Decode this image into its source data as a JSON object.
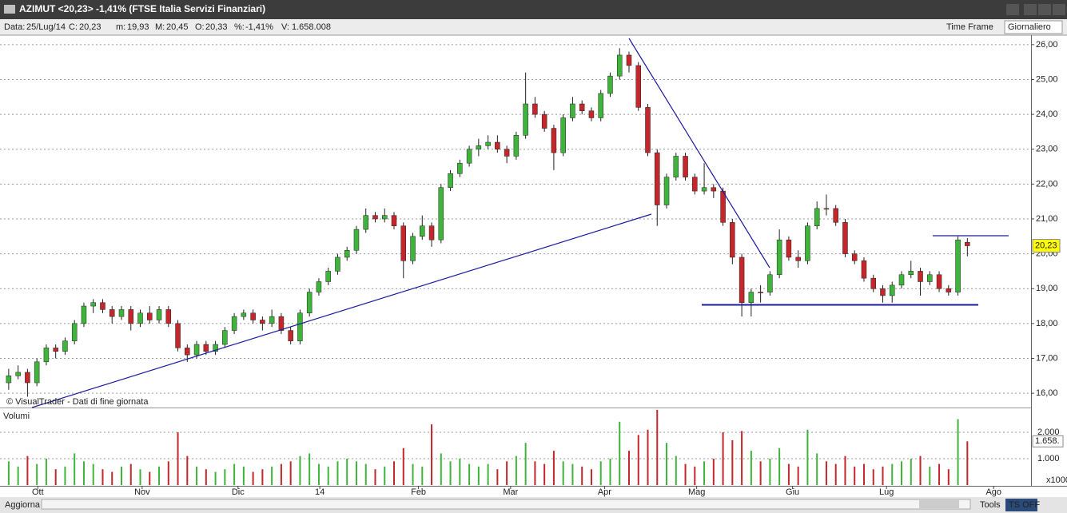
{
  "window": {
    "title": "AZIMUT <20,23> -1,41%  (FTSE Italia Servizi Finanziari)"
  },
  "info": {
    "date_label": "Data:",
    "date": "25/Lug/14",
    "close_label": "C:",
    "close": "20,23",
    "low_label": "m:",
    "low": "19,93",
    "high_label": "M:",
    "high": "20,45",
    "open_label": "O:",
    "open": "20,33",
    "change_label": "%:",
    "change": "-1,41%",
    "volume_label": "V:",
    "volume": "1.658.008",
    "timeframe_label": "Time Frame",
    "timeframe": "Giornaliero"
  },
  "chart_data": {
    "type": "candlestick",
    "watermark": "© VisualTrader - Dati di fine giornata",
    "up_color": "#3fb43a",
    "down_color": "#c4262b",
    "grid": true,
    "xlim": [
      0,
      108
    ],
    "xticks": [
      {
        "value": 3.6,
        "label": "Ott"
      },
      {
        "value": 14.7,
        "label": "Nov"
      },
      {
        "value": 24.9,
        "label": "Dic"
      },
      {
        "value": 33.6,
        "label": "14"
      },
      {
        "value": 44.1,
        "label": "Feb"
      },
      {
        "value": 53.9,
        "label": "Mar"
      },
      {
        "value": 63.9,
        "label": "Apr"
      },
      {
        "value": 73.7,
        "label": "Mag"
      },
      {
        "value": 83.9,
        "label": "Giu"
      },
      {
        "value": 93.9,
        "label": "Lug"
      },
      {
        "value": 105.3,
        "label": "Ago"
      }
    ],
    "ylim": [
      15.59,
      26.18
    ],
    "yticks": [
      {
        "value": 16,
        "label": "16,00"
      },
      {
        "value": 17,
        "label": "17,00"
      },
      {
        "value": 18,
        "label": "18,00"
      },
      {
        "value": 19,
        "label": "19,00"
      },
      {
        "value": 20,
        "label": "20,00"
      },
      {
        "value": 21,
        "label": "21,00"
      },
      {
        "value": 22,
        "label": "22,00"
      },
      {
        "value": 23,
        "label": "23,00"
      },
      {
        "value": 24,
        "label": "24,00"
      },
      {
        "value": 25,
        "label": "25,00"
      },
      {
        "value": 26,
        "label": "26,00"
      }
    ],
    "ohlc": [
      [
        16.3,
        16.7,
        16.1,
        16.5
      ],
      [
        16.5,
        16.8,
        16.4,
        16.6
      ],
      [
        16.6,
        16.7,
        15.9,
        16.3
      ],
      [
        16.3,
        17.0,
        16.2,
        16.9
      ],
      [
        16.9,
        17.4,
        16.8,
        17.3
      ],
      [
        17.3,
        17.4,
        17.0,
        17.2
      ],
      [
        17.2,
        17.6,
        17.1,
        17.5
      ],
      [
        17.5,
        18.1,
        17.4,
        18.0
      ],
      [
        18.0,
        18.6,
        17.9,
        18.5
      ],
      [
        18.5,
        18.7,
        18.3,
        18.6
      ],
      [
        18.6,
        18.7,
        18.3,
        18.4
      ],
      [
        18.4,
        18.5,
        18.0,
        18.2
      ],
      [
        18.2,
        18.5,
        18.1,
        18.4
      ],
      [
        18.4,
        18.5,
        17.8,
        18.0
      ],
      [
        18.0,
        18.4,
        17.9,
        18.3
      ],
      [
        18.3,
        18.5,
        18.0,
        18.1
      ],
      [
        18.1,
        18.5,
        18.0,
        18.4
      ],
      [
        18.4,
        18.5,
        17.9,
        18.0
      ],
      [
        18.0,
        18.1,
        17.2,
        17.3
      ],
      [
        17.3,
        17.4,
        16.9,
        17.1
      ],
      [
        17.1,
        17.5,
        17.0,
        17.4
      ],
      [
        17.4,
        17.5,
        17.1,
        17.2
      ],
      [
        17.2,
        17.5,
        17.1,
        17.4
      ],
      [
        17.4,
        17.9,
        17.3,
        17.8
      ],
      [
        17.8,
        18.3,
        17.7,
        18.2
      ],
      [
        18.2,
        18.4,
        18.1,
        18.3
      ],
      [
        18.3,
        18.4,
        18.0,
        18.1
      ],
      [
        18.1,
        18.2,
        17.8,
        18.0
      ],
      [
        18.0,
        18.4,
        17.9,
        18.2
      ],
      [
        18.2,
        18.3,
        17.7,
        17.8
      ],
      [
        17.8,
        17.9,
        17.4,
        17.5
      ],
      [
        17.5,
        18.4,
        17.4,
        18.3
      ],
      [
        18.3,
        19.0,
        18.2,
        18.9
      ],
      [
        18.9,
        19.3,
        18.8,
        19.2
      ],
      [
        19.2,
        19.6,
        19.1,
        19.5
      ],
      [
        19.5,
        20.0,
        19.4,
        19.9
      ],
      [
        19.9,
        20.2,
        19.8,
        20.1
      ],
      [
        20.1,
        20.8,
        20.0,
        20.7
      ],
      [
        20.7,
        21.3,
        20.6,
        21.1
      ],
      [
        21.1,
        21.2,
        20.9,
        21.0
      ],
      [
        21.0,
        21.3,
        20.9,
        21.1
      ],
      [
        21.1,
        21.2,
        20.7,
        20.8
      ],
      [
        20.8,
        20.9,
        19.3,
        19.8
      ],
      [
        19.8,
        20.6,
        19.7,
        20.5
      ],
      [
        20.5,
        21.1,
        20.4,
        20.8
      ],
      [
        20.8,
        20.9,
        20.2,
        20.4
      ],
      [
        20.4,
        22.0,
        20.3,
        21.9
      ],
      [
        21.9,
        22.4,
        21.8,
        22.3
      ],
      [
        22.3,
        22.7,
        22.2,
        22.6
      ],
      [
        22.6,
        23.1,
        22.5,
        23.0
      ],
      [
        23.0,
        23.3,
        22.8,
        23.1
      ],
      [
        23.1,
        23.4,
        23.0,
        23.2
      ],
      [
        23.2,
        23.4,
        22.9,
        23.0
      ],
      [
        23.0,
        23.1,
        22.6,
        22.8
      ],
      [
        22.8,
        23.5,
        22.7,
        23.4
      ],
      [
        23.4,
        25.2,
        23.3,
        24.3
      ],
      [
        24.3,
        24.5,
        23.9,
        24.0
      ],
      [
        24.0,
        24.1,
        23.5,
        23.6
      ],
      [
        23.6,
        23.7,
        22.4,
        22.9
      ],
      [
        22.9,
        24.0,
        22.8,
        23.9
      ],
      [
        23.9,
        24.5,
        23.8,
        24.3
      ],
      [
        24.3,
        24.4,
        24.0,
        24.1
      ],
      [
        24.1,
        24.2,
        23.8,
        23.9
      ],
      [
        23.9,
        24.7,
        23.8,
        24.6
      ],
      [
        24.6,
        25.2,
        24.5,
        25.1
      ],
      [
        25.1,
        25.9,
        25.0,
        25.7
      ],
      [
        25.7,
        25.8,
        25.2,
        25.4
      ],
      [
        25.4,
        25.5,
        24.1,
        24.2
      ],
      [
        24.2,
        24.3,
        22.8,
        22.9
      ],
      [
        22.9,
        23.0,
        20.8,
        21.4
      ],
      [
        21.4,
        22.3,
        21.3,
        22.2
      ],
      [
        22.2,
        22.9,
        22.1,
        22.8
      ],
      [
        22.8,
        22.9,
        22.1,
        22.2
      ],
      [
        22.2,
        22.3,
        21.7,
        21.8
      ],
      [
        21.8,
        22.6,
        21.7,
        21.9
      ],
      [
        21.9,
        22.0,
        21.6,
        21.8
      ],
      [
        21.8,
        21.9,
        20.8,
        20.9
      ],
      [
        20.9,
        21.0,
        19.7,
        19.9
      ],
      [
        19.9,
        20.0,
        18.2,
        18.6
      ],
      [
        18.6,
        19.0,
        18.2,
        18.9
      ],
      [
        18.9,
        19.1,
        18.6,
        18.9
      ],
      [
        18.9,
        19.5,
        18.8,
        19.4
      ],
      [
        19.4,
        20.7,
        19.3,
        20.4
      ],
      [
        20.4,
        20.5,
        19.8,
        19.9
      ],
      [
        19.9,
        20.1,
        19.6,
        19.8
      ],
      [
        19.8,
        20.9,
        19.7,
        20.8
      ],
      [
        20.8,
        21.5,
        20.7,
        21.3
      ],
      [
        21.3,
        21.7,
        21.1,
        21.3
      ],
      [
        21.3,
        21.4,
        20.8,
        20.9
      ],
      [
        20.9,
        21.0,
        19.9,
        20.0
      ],
      [
        20.0,
        20.1,
        19.7,
        19.8
      ],
      [
        19.8,
        19.9,
        19.2,
        19.3
      ],
      [
        19.3,
        19.4,
        18.9,
        19.0
      ],
      [
        19.0,
        19.1,
        18.6,
        18.8
      ],
      [
        18.8,
        19.2,
        18.6,
        19.1
      ],
      [
        19.1,
        19.5,
        19.0,
        19.4
      ],
      [
        19.4,
        19.8,
        19.3,
        19.5
      ],
      [
        19.5,
        19.6,
        18.8,
        19.2
      ],
      [
        19.2,
        19.5,
        19.1,
        19.4
      ],
      [
        19.4,
        19.5,
        18.9,
        19.0
      ],
      [
        19.0,
        19.1,
        18.8,
        18.9
      ],
      [
        18.9,
        20.5,
        18.8,
        20.4
      ],
      [
        20.33,
        20.45,
        19.93,
        20.23
      ]
    ],
    "last_price_label": "20,23",
    "volume": {
      "title": "Volumi",
      "unit": "x1000",
      "last_label": "1.658.",
      "ylim": [
        0,
        2880
      ],
      "yticks": [
        {
          "value": 1000,
          "label": "1.000"
        },
        {
          "value": 2000,
          "label": "2.000"
        }
      ],
      "values": [
        900,
        700,
        1100,
        800,
        1000,
        600,
        700,
        1200,
        900,
        800,
        600,
        500,
        700,
        800,
        600,
        500,
        700,
        900,
        2000,
        1100,
        700,
        600,
        500,
        600,
        800,
        700,
        500,
        600,
        700,
        800,
        900,
        1100,
        1200,
        800,
        700,
        900,
        1000,
        900,
        800,
        600,
        700,
        900,
        1400,
        800,
        700,
        2300,
        1200,
        900,
        1000,
        800,
        700,
        800,
        600,
        900,
        1100,
        1600,
        900,
        800,
        1300,
        900,
        800,
        700,
        600,
        900,
        1000,
        2400,
        1300,
        1900,
        2100,
        2850,
        1600,
        1100,
        800,
        700,
        900,
        1000,
        2000,
        1700,
        2050,
        1300,
        900,
        1000,
        1400,
        800,
        700,
        2100,
        1200,
        900,
        800,
        1100,
        700,
        800,
        600,
        700,
        800,
        900,
        1000,
        1100,
        700,
        800,
        600,
        2500,
        1658
      ]
    }
  },
  "status": {
    "refresh": "Aggiorna",
    "tools": "Tools",
    "ts": "TS OFF"
  }
}
